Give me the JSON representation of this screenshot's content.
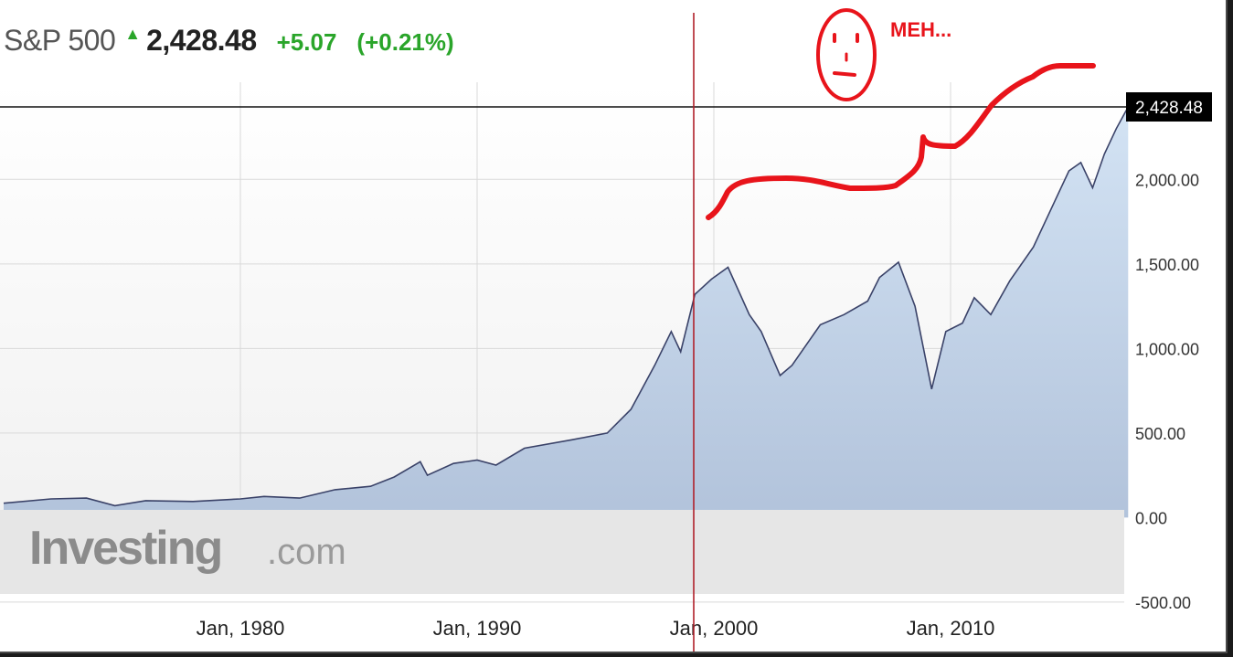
{
  "header": {
    "name": "S&P 500",
    "arrow": "▲",
    "price": "2,428.48",
    "change": "+5.07",
    "change_pct": "(+0.21%)"
  },
  "annotation": {
    "text": "MEH..."
  },
  "watermark": {
    "brand": "Investing",
    "suffix": ".com"
  },
  "colors": {
    "line": "#3a4268",
    "area_top": "#cddff2",
    "area_bottom": "#aebfd8",
    "annotation": "#e8141b",
    "positive": "#2aa52a",
    "grid": "#d9d9d9",
    "last_price_box": "#000000"
  },
  "chart_data": {
    "type": "area",
    "series": [
      {
        "x": [
          1970.0,
          1972.0,
          1973.5,
          1974.7,
          1976.0,
          1978.0,
          1980.0,
          1981.0,
          1982.5,
          1984.0,
          1985.5,
          1986.5,
          1987.6,
          1987.9,
          1989.0,
          1990.0,
          1990.8,
          1992.0,
          1994.0,
          1995.5,
          1996.5,
          1997.5,
          1998.2,
          1998.6,
          1999.2,
          1999.9,
          2000.6,
          2001.5,
          2002.0,
          2002.8,
          2003.3,
          2004.5,
          2005.5,
          2006.5,
          2007.0,
          2007.8,
          2008.5,
          2009.2,
          2009.8,
          2010.5,
          2011.0,
          2011.7,
          2012.5,
          2013.5,
          2014.5,
          2015.0,
          2015.5,
          2016.0,
          2016.5,
          2017.0,
          2017.5
        ],
        "y": [
          85,
          110,
          115,
          70,
          100,
          95,
          110,
          125,
          115,
          165,
          185,
          240,
          330,
          250,
          320,
          340,
          310,
          410,
          460,
          500,
          640,
          900,
          1100,
          980,
          1320,
          1410,
          1480,
          1200,
          1100,
          840,
          900,
          1140,
          1200,
          1280,
          1420,
          1510,
          1250,
          760,
          1100,
          1150,
          1300,
          1200,
          1400,
          1600,
          1900,
          2050,
          2100,
          1950,
          2150,
          2300,
          2428.48
        ]
      }
    ],
    "ylim": [
      -500,
      2428.48
    ],
    "y_ticks": [
      "2,000.00",
      "1,500.00",
      "1,000.00",
      "500.00",
      "0.00",
      "-500.00"
    ],
    "x_ticks": [
      "Jan, 1980",
      "Jan, 1990",
      "Jan, 2000",
      "Jan, 2010"
    ],
    "last_value_label": "2,428.48",
    "grid": true,
    "x_scale": "years"
  }
}
